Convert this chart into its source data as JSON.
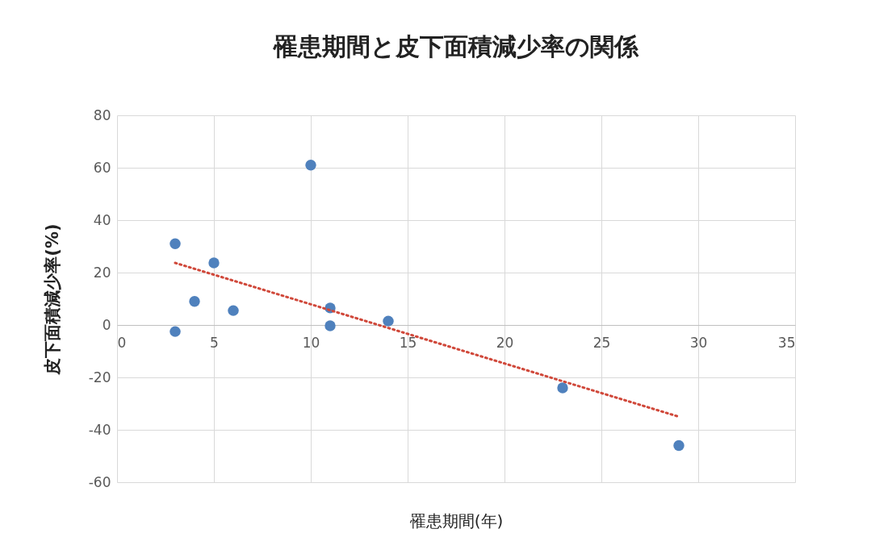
{
  "chart_data": {
    "type": "scatter",
    "title": "罹患期間と皮下面積減少率の関係",
    "xlabel": "罹患期間(年)",
    "ylabel": "皮下面積減少率(%)",
    "series": [
      {
        "color": "#4f81bd",
        "marker": "circle",
        "x": [
          3,
          5,
          4,
          6,
          3,
          10,
          11,
          11,
          14,
          23,
          29
        ],
        "values": [
          31,
          23.7,
          9,
          5.5,
          -2.5,
          61,
          6.5,
          -0.3,
          1.5,
          -24,
          -46
        ]
      },
      {
        "type": "line",
        "color": "#d0483a",
        "line_style": "dotted",
        "x": [
          3,
          29
        ],
        "values": [
          23.7,
          -35
        ]
      }
    ],
    "xlim": [
      0,
      35
    ],
    "xticks": [
      0,
      5,
      10,
      15,
      20,
      25,
      30,
      35
    ],
    "ylim": [
      -60,
      80
    ],
    "yticks": [
      -60,
      -40,
      -20,
      0,
      20,
      40,
      60,
      80
    ],
    "grid": true
  }
}
